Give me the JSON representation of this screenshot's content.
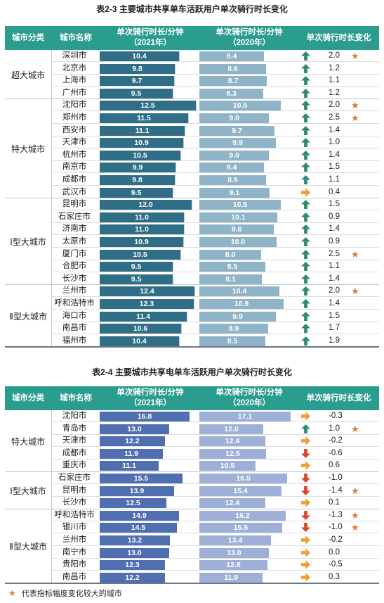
{
  "table1": {
    "title": "表2-3 主要城市共享单车活跃用户单次骑行时长变化",
    "headers": {
      "category": "城市分类",
      "city": "城市名称",
      "y2021_line1": "单次骑行时长/分钟",
      "y2021_line2": "（2021年）",
      "y2020_line1": "单次骑行时长/分钟",
      "y2020_line2": "（2020年）",
      "change": "单次骑行时长变化"
    },
    "groups": [
      {
        "name": "超大城市",
        "rows": [
          {
            "city": "深圳市",
            "v2021": "10.4",
            "v2020": "8.4",
            "dir": "up",
            "change": "2.0",
            "star": "★"
          },
          {
            "city": "北京市",
            "v2021": "9.8",
            "v2020": "8.6",
            "dir": "up",
            "change": "1.2",
            "star": ""
          },
          {
            "city": "上海市",
            "v2021": "9.7",
            "v2020": "8.7",
            "dir": "up",
            "change": "1.1",
            "star": ""
          },
          {
            "city": "广州市",
            "v2021": "9.5",
            "v2020": "8.3",
            "dir": "up",
            "change": "1.2",
            "star": ""
          }
        ]
      },
      {
        "name": "特大城市",
        "rows": [
          {
            "city": "沈阳市",
            "v2021": "12.5",
            "v2020": "10.5",
            "dir": "up",
            "change": "2.0",
            "star": "★"
          },
          {
            "city": "郑州市",
            "v2021": "11.5",
            "v2020": "9.0",
            "dir": "up",
            "change": "2.5",
            "star": "★"
          },
          {
            "city": "西安市",
            "v2021": "11.1",
            "v2020": "9.7",
            "dir": "up",
            "change": "1.4",
            "star": ""
          },
          {
            "city": "天津市",
            "v2021": "10.9",
            "v2020": "9.9",
            "dir": "up",
            "change": "1.0",
            "star": ""
          },
          {
            "city": "杭州市",
            "v2021": "10.5",
            "v2020": "9.0",
            "dir": "up",
            "change": "1.4",
            "star": ""
          },
          {
            "city": "南京市",
            "v2021": "9.9",
            "v2020": "8.4",
            "dir": "up",
            "change": "1.5",
            "star": ""
          },
          {
            "city": "成都市",
            "v2021": "9.8",
            "v2020": "8.6",
            "dir": "up",
            "change": "1.1",
            "star": ""
          },
          {
            "city": "武汉市",
            "v2021": "9.5",
            "v2020": "9.1",
            "dir": "right",
            "change": "0.4",
            "star": ""
          }
        ]
      },
      {
        "name": "Ⅰ型大城市",
        "rows": [
          {
            "city": "昆明市",
            "v2021": "12.0",
            "v2020": "10.5",
            "dir": "up",
            "change": "1.5",
            "star": ""
          },
          {
            "city": "石家庄市",
            "v2021": "11.0",
            "v2020": "10.1",
            "dir": "up",
            "change": "0.9",
            "star": ""
          },
          {
            "city": "济南市",
            "v2021": "11.0",
            "v2020": "9.6",
            "dir": "up",
            "change": "1.4",
            "star": ""
          },
          {
            "city": "太原市",
            "v2021": "10.9",
            "v2020": "10.0",
            "dir": "up",
            "change": "0.9",
            "star": ""
          },
          {
            "city": "厦门市",
            "v2021": "10.5",
            "v2020": "8.0",
            "dir": "up",
            "change": "2.5",
            "star": "★"
          },
          {
            "city": "合肥市",
            "v2021": "9.5",
            "v2020": "8.5",
            "dir": "up",
            "change": "1.1",
            "star": ""
          },
          {
            "city": "长沙市",
            "v2021": "9.5",
            "v2020": "8.1",
            "dir": "up",
            "change": "1.4",
            "star": ""
          }
        ]
      },
      {
        "name": "Ⅱ型大城市",
        "rows": [
          {
            "city": "兰州市",
            "v2021": "12.4",
            "v2020": "10.4",
            "dir": "up",
            "change": "2.0",
            "star": "★"
          },
          {
            "city": "呼和浩特市",
            "v2021": "12.3",
            "v2020": "10.9",
            "dir": "up",
            "change": "1.4",
            "star": ""
          },
          {
            "city": "海口市",
            "v2021": "11.4",
            "v2020": "9.9",
            "dir": "up",
            "change": "1.5",
            "star": ""
          },
          {
            "city": "南昌市",
            "v2021": "10.6",
            "v2020": "8.9",
            "dir": "up",
            "change": "1.7",
            "star": ""
          },
          {
            "city": "福州市",
            "v2021": "10.4",
            "v2020": "8.5",
            "dir": "up",
            "change": "1.9",
            "star": ""
          }
        ]
      }
    ]
  },
  "table2": {
    "title": "表2-4 主要城市共享电单车活跃用户单次骑行时长变化",
    "headers": {
      "category": "城市分类",
      "city": "城市名称",
      "y2021_line1": "单次骑行时长/分钟",
      "y2021_line2": "（2021年）",
      "y2020_line1": "单次骑行时长/分钟",
      "y2020_line2": "（2020年）",
      "change": "单次骑行时长变化"
    },
    "groups": [
      {
        "name": "特大城市",
        "rows": [
          {
            "city": "沈阳市",
            "v2021": "16.8",
            "v2020": "17.1",
            "dir": "right",
            "change": "-0.3",
            "star": ""
          },
          {
            "city": "青岛市",
            "v2021": "13.0",
            "v2020": "12.0",
            "dir": "up",
            "change": "1.0",
            "star": "★"
          },
          {
            "city": "天津市",
            "v2021": "12.2",
            "v2020": "12.4",
            "dir": "right",
            "change": "-0.2",
            "star": ""
          },
          {
            "city": "成都市",
            "v2021": "11.9",
            "v2020": "12.5",
            "dir": "down",
            "change": "-0.6",
            "star": ""
          },
          {
            "city": "重庆市",
            "v2021": "11.1",
            "v2020": "10.5",
            "dir": "right",
            "change": "0.6",
            "star": ""
          }
        ]
      },
      {
        "name": "Ⅰ型大城市",
        "rows": [
          {
            "city": "石家庄市",
            "v2021": "15.5",
            "v2020": "16.5",
            "dir": "down",
            "change": "-1.0",
            "star": ""
          },
          {
            "city": "昆明市",
            "v2021": "13.9",
            "v2020": "15.4",
            "dir": "down",
            "change": "-1.4",
            "star": "★"
          },
          {
            "city": "长沙市",
            "v2021": "12.5",
            "v2020": "12.4",
            "dir": "right",
            "change": "0.1",
            "star": ""
          }
        ]
      },
      {
        "name": "Ⅱ型大城市",
        "rows": [
          {
            "city": "呼和浩特市",
            "v2021": "14.9",
            "v2020": "16.2",
            "dir": "down",
            "change": "-1.3",
            "star": "★"
          },
          {
            "city": "银川市",
            "v2021": "14.5",
            "v2020": "15.5",
            "dir": "down",
            "change": "-1.0",
            "star": "★"
          },
          {
            "city": "兰州市",
            "v2021": "13.2",
            "v2020": "13.4",
            "dir": "right",
            "change": "-0.2",
            "star": ""
          },
          {
            "city": "南宁市",
            "v2021": "13.0",
            "v2020": "13.0",
            "dir": "right",
            "change": "0.0",
            "star": ""
          },
          {
            "city": "贵阳市",
            "v2021": "12.3",
            "v2020": "12.8",
            "dir": "right",
            "change": "-0.5",
            "star": ""
          },
          {
            "city": "南昌市",
            "v2021": "12.2",
            "v2020": "11.9",
            "dir": "right",
            "change": "0.3",
            "star": ""
          }
        ]
      }
    ]
  },
  "footnote": {
    "star": "★",
    "text": "代表指标幅度变化较大的城市"
  },
  "colors": {
    "header_bg": "#2a9d8f",
    "up_arrow": "#2e8b72",
    "down_arrow": "#d9472b",
    "right_arrow": "#f0a030",
    "star": "#e07a2e"
  }
}
